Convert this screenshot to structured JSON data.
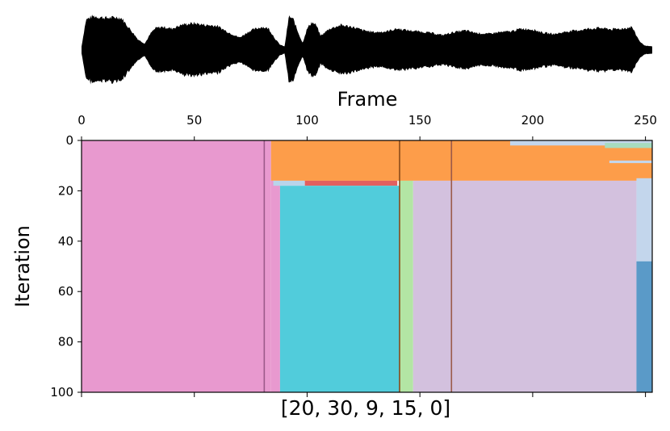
{
  "chart_data": [
    {
      "type": "area",
      "description_of_marks": "audio waveform envelope",
      "x": [
        0,
        2,
        5,
        8,
        12,
        16,
        18,
        20,
        22,
        25,
        28,
        31,
        33,
        36,
        40,
        45,
        50,
        55,
        60,
        65,
        70,
        75,
        80,
        83,
        86,
        88,
        90,
        92,
        94,
        96,
        98,
        100,
        102,
        104,
        106,
        110,
        115,
        120,
        125,
        130,
        135,
        140,
        145,
        150,
        155,
        160,
        165,
        170,
        175,
        180,
        185,
        190,
        195,
        200,
        205,
        210,
        215,
        220,
        225,
        230,
        235,
        240,
        244,
        246,
        248,
        250,
        253
      ],
      "amplitude": [
        0.1,
        0.85,
        0.95,
        0.92,
        0.9,
        0.92,
        0.88,
        0.7,
        0.55,
        0.3,
        0.18,
        0.5,
        0.62,
        0.65,
        0.6,
        0.72,
        0.75,
        0.7,
        0.68,
        0.5,
        0.35,
        0.55,
        0.65,
        0.6,
        0.3,
        0.15,
        0.1,
        0.95,
        0.85,
        0.5,
        0.2,
        0.6,
        0.78,
        0.7,
        0.4,
        0.6,
        0.7,
        0.65,
        0.55,
        0.5,
        0.52,
        0.6,
        0.55,
        0.52,
        0.48,
        0.42,
        0.5,
        0.55,
        0.48,
        0.45,
        0.5,
        0.52,
        0.6,
        0.58,
        0.48,
        0.45,
        0.52,
        0.55,
        0.6,
        0.62,
        0.58,
        0.6,
        0.65,
        0.4,
        0.2,
        0.12,
        0.1
      ],
      "xlabel": "Frame",
      "xlim": [
        0,
        253
      ],
      "xticks": [
        0,
        50,
        100,
        150,
        200,
        250
      ]
    },
    {
      "type": "heatmap",
      "xlabel": "[20, 30, 9, 15, 0]",
      "ylabel": "Iteration",
      "xlim": [
        0,
        253
      ],
      "ylim": [
        0,
        100
      ],
      "xticks": [
        0,
        50,
        100,
        150,
        200,
        250
      ],
      "yticks": [
        0,
        20,
        40,
        60,
        80,
        100
      ],
      "xticks_top": [
        0,
        50,
        100,
        150,
        200,
        250
      ],
      "y_inverted": true,
      "colors": {
        "pink": "#e899cf",
        "orange": "#fd9d4a",
        "red": "#e26060",
        "lightblue": "#b9d4ea",
        "cyan": "#51ccdb",
        "green": "#b3e5a4",
        "lavender": "#d3c1de",
        "paleblue": "#c3d6ec",
        "blue": "#5a9ac8",
        "mint": "#a7dcbe"
      },
      "segments": [
        {
          "x0": 0,
          "x1": 84,
          "y0": 0,
          "y1": 100,
          "color": "pink"
        },
        {
          "x0": 84,
          "x1": 253,
          "y0": 0,
          "y1": 16,
          "color": "orange"
        },
        {
          "x0": 84,
          "x1": 88,
          "y0": 16,
          "y1": 100,
          "color": "pink"
        },
        {
          "x0": 85,
          "x1": 99,
          "y0": 16,
          "y1": 18,
          "color": "lightblue"
        },
        {
          "x0": 99,
          "x1": 140,
          "y0": 16,
          "y1": 18,
          "color": "red"
        },
        {
          "x0": 88,
          "x1": 141,
          "y0": 18,
          "y1": 100,
          "color": "cyan"
        },
        {
          "x0": 141,
          "x1": 147,
          "y0": 16,
          "y1": 100,
          "color": "green"
        },
        {
          "x0": 147,
          "x1": 246,
          "y0": 16,
          "y1": 100,
          "color": "lavender"
        },
        {
          "x0": 246,
          "x1": 253,
          "y0": 15,
          "y1": 48,
          "color": "paleblue"
        },
        {
          "x0": 246,
          "x1": 253,
          "y0": 48,
          "y1": 100,
          "color": "blue"
        },
        {
          "x0": 190,
          "x1": 253,
          "y0": 0,
          "y1": 2,
          "color": "paleblue"
        },
        {
          "x0": 232,
          "x1": 253,
          "y0": 1,
          "y1": 3,
          "color": "mint"
        },
        {
          "x0": 234,
          "x1": 253,
          "y0": 8,
          "y1": 9,
          "color": "paleblue"
        }
      ],
      "vertical_lines": [
        {
          "x": 81,
          "color": "#9b5a8a"
        },
        {
          "x": 141,
          "color": "#8a4a1a"
        },
        {
          "x": 164,
          "color": "#9a5a4a"
        }
      ]
    }
  ]
}
